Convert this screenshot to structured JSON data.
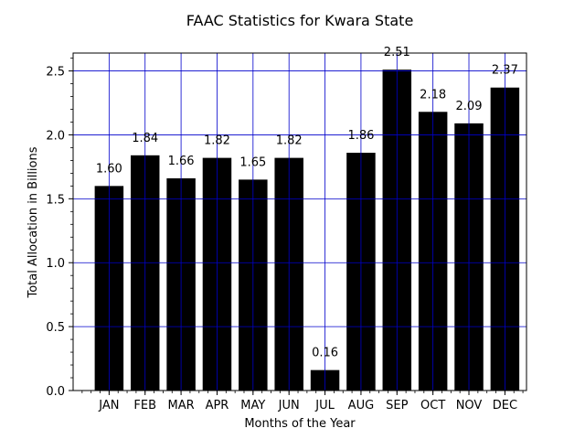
{
  "chart_data": {
    "type": "bar",
    "title": "FAAC Statistics for Kwara State",
    "xlabel": "Months of the Year",
    "ylabel": "Total Allocation in Billions",
    "categories": [
      "JAN",
      "FEB",
      "MAR",
      "APR",
      "MAY",
      "JUN",
      "JUL",
      "AUG",
      "SEP",
      "OCT",
      "NOV",
      "DEC"
    ],
    "values": [
      1.6,
      1.84,
      1.66,
      1.82,
      1.65,
      1.82,
      0.16,
      1.86,
      2.51,
      2.18,
      2.09,
      2.37
    ],
    "value_labels": [
      "1.60",
      "1.84",
      "1.66",
      "1.82",
      "1.65",
      "1.82",
      "0.16",
      "1.86",
      "2.51",
      "2.18",
      "2.09",
      "2.37"
    ],
    "ylim": [
      0,
      2.64
    ],
    "yticks": [
      0.0,
      0.5,
      1.0,
      1.5,
      2.0,
      2.5
    ],
    "ytick_labels": [
      "0.0",
      "0.5",
      "1.0",
      "1.5",
      "2.0",
      "2.5"
    ],
    "grid": true,
    "bar_color": "#000000",
    "grid_color": "#0000cc"
  }
}
